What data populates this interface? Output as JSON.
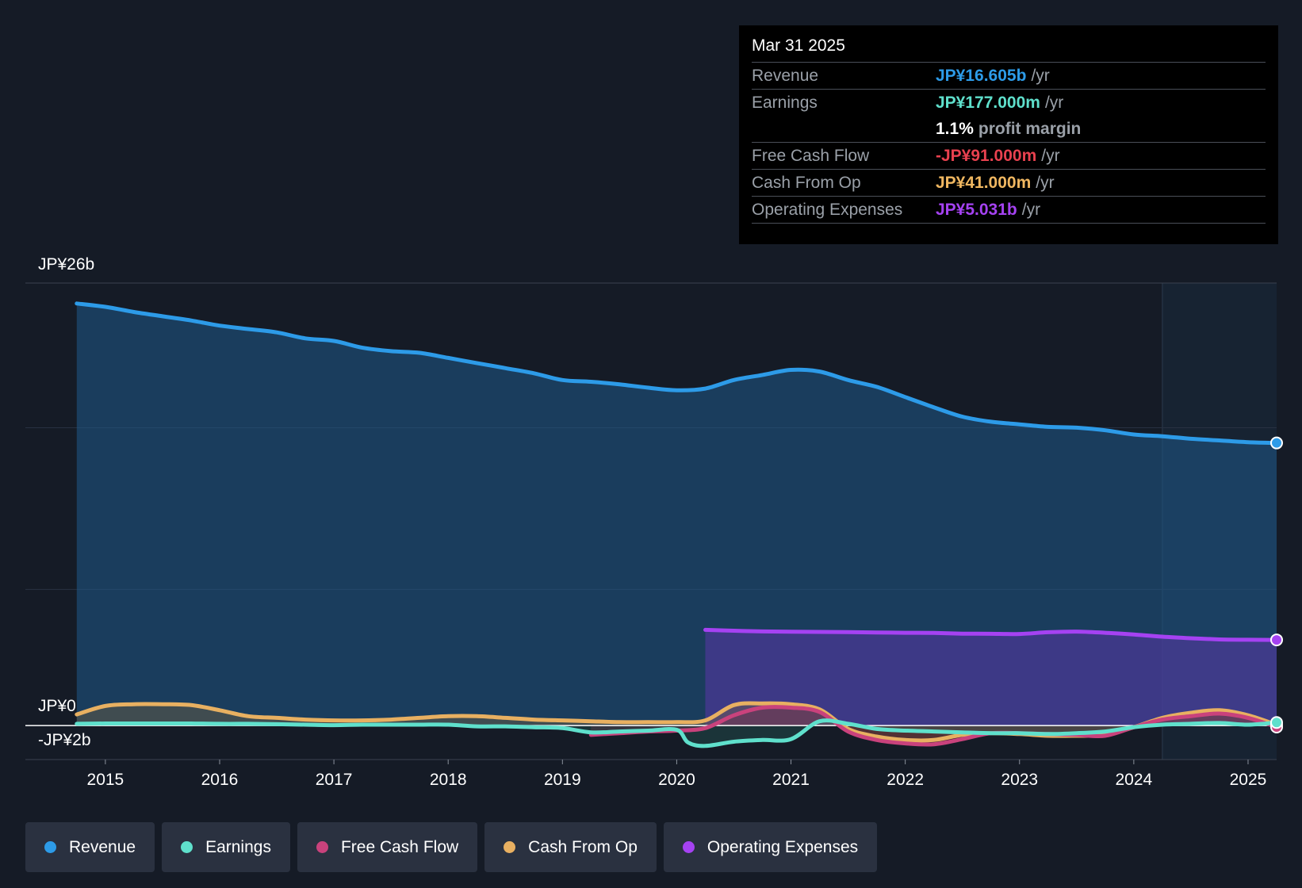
{
  "tooltip": {
    "date": "Mar 31 2025",
    "rows": [
      {
        "name": "Revenue",
        "value": "JP¥16.605b",
        "unit": "/yr",
        "color": "#2d9be8"
      },
      {
        "name": "Earnings",
        "value": "JP¥177.000m",
        "unit": "/yr",
        "color": "#5fe0cc"
      },
      {
        "name": "",
        "value": "1.1%",
        "unit": "profit margin",
        "color": "#ffffff"
      },
      {
        "name": "Free Cash Flow",
        "value": "-JP¥91.000m",
        "unit": "/yr",
        "color": "#e8414f"
      },
      {
        "name": "Cash From Op",
        "value": "JP¥41.000m",
        "unit": "/yr",
        "color": "#f0b761"
      },
      {
        "name": "Operating Expenses",
        "value": "JP¥5.031b",
        "unit": "/yr",
        "color": "#a542f2"
      }
    ]
  },
  "legend": [
    {
      "label": "Revenue",
      "color": "#2d9be8"
    },
    {
      "label": "Earnings",
      "color": "#5fe0cc"
    },
    {
      "label": "Free Cash Flow",
      "color": "#c9427c"
    },
    {
      "label": "Cash From Op",
      "color": "#e8b061"
    },
    {
      "label": "Operating Expenses",
      "color": "#a542f2"
    }
  ],
  "chart_data": {
    "type": "area",
    "title": "",
    "y_top_label": "JP¥26b",
    "y_zero_label": "JP¥0",
    "y_min_label": "-JP¥2b",
    "ylim": [
      -2,
      26
    ],
    "xlim": [
      2014.3,
      2025.25
    ],
    "x_ticks": [
      2015,
      2016,
      2017,
      2018,
      2019,
      2020,
      2021,
      2022,
      2023,
      2024,
      2025
    ],
    "x_tick_labels": [
      "2015",
      "2016",
      "2017",
      "2018",
      "2019",
      "2020",
      "2021",
      "2022",
      "2023",
      "2024",
      "2025"
    ],
    "highlight_start": 2024.25,
    "series": [
      {
        "name": "Revenue",
        "color": "#2d9be8",
        "fill": true,
        "x": [
          2014.75,
          2015.0,
          2015.25,
          2015.5,
          2015.75,
          2016.0,
          2016.25,
          2016.5,
          2016.75,
          2017.0,
          2017.25,
          2017.5,
          2017.75,
          2018.0,
          2018.25,
          2018.5,
          2018.75,
          2019.0,
          2019.25,
          2019.5,
          2019.75,
          2020.0,
          2020.25,
          2020.5,
          2020.75,
          2021.0,
          2021.25,
          2021.5,
          2021.75,
          2022.0,
          2022.25,
          2022.5,
          2022.75,
          2023.0,
          2023.25,
          2023.5,
          2023.75,
          2024.0,
          2024.25,
          2024.5,
          2024.75,
          2025.0,
          2025.25
        ],
        "y": [
          24.8,
          24.6,
          24.3,
          24.05,
          23.8,
          23.5,
          23.3,
          23.1,
          22.75,
          22.6,
          22.2,
          22.0,
          21.9,
          21.6,
          21.3,
          21.0,
          20.7,
          20.3,
          20.2,
          20.05,
          19.85,
          19.7,
          19.8,
          20.3,
          20.6,
          20.9,
          20.8,
          20.3,
          19.9,
          19.3,
          18.7,
          18.15,
          17.85,
          17.7,
          17.55,
          17.5,
          17.35,
          17.1,
          17.0,
          16.85,
          16.75,
          16.65,
          16.605
        ]
      },
      {
        "name": "Operating Expenses",
        "color": "#a542f2",
        "fill": true,
        "x": [
          2020.25,
          2020.5,
          2020.75,
          2021.0,
          2021.25,
          2021.5,
          2021.75,
          2022.0,
          2022.25,
          2022.5,
          2022.75,
          2023.0,
          2023.25,
          2023.5,
          2023.75,
          2024.0,
          2024.25,
          2024.5,
          2024.75,
          2025.0,
          2025.25
        ],
        "y": [
          5.62,
          5.57,
          5.53,
          5.51,
          5.5,
          5.49,
          5.47,
          5.45,
          5.44,
          5.4,
          5.39,
          5.38,
          5.48,
          5.52,
          5.45,
          5.35,
          5.22,
          5.13,
          5.06,
          5.04,
          5.031
        ]
      },
      {
        "name": "Cash From Op",
        "color": "#e8b061",
        "fill": true,
        "x": [
          2014.75,
          2015.0,
          2015.25,
          2015.5,
          2015.75,
          2016.0,
          2016.25,
          2016.5,
          2016.75,
          2017.0,
          2017.25,
          2017.5,
          2017.75,
          2018.0,
          2018.25,
          2018.5,
          2018.75,
          2019.0,
          2019.25,
          2019.5,
          2019.75,
          2020.0,
          2020.25,
          2020.5,
          2020.75,
          2021.0,
          2021.25,
          2021.5,
          2021.75,
          2022.0,
          2022.25,
          2022.5,
          2022.75,
          2023.0,
          2023.25,
          2023.5,
          2023.75,
          2024.0,
          2024.25,
          2024.5,
          2024.75,
          2025.0,
          2025.25
        ],
        "y": [
          0.65,
          1.15,
          1.25,
          1.25,
          1.2,
          0.9,
          0.55,
          0.45,
          0.35,
          0.3,
          0.3,
          0.35,
          0.45,
          0.55,
          0.55,
          0.45,
          0.35,
          0.3,
          0.25,
          0.2,
          0.2,
          0.2,
          0.3,
          1.2,
          1.3,
          1.25,
          0.95,
          -0.2,
          -0.65,
          -0.85,
          -0.85,
          -0.55,
          -0.45,
          -0.5,
          -0.6,
          -0.6,
          -0.55,
          -0.1,
          0.45,
          0.75,
          0.9,
          0.6,
          0.041
        ]
      },
      {
        "name": "Free Cash Flow",
        "color": "#c9427c",
        "fill": true,
        "x": [
          2019.25,
          2019.5,
          2019.75,
          2020.0,
          2020.25,
          2020.5,
          2020.75,
          2021.0,
          2021.25,
          2021.5,
          2021.75,
          2022.0,
          2022.25,
          2022.5,
          2022.75,
          2023.0,
          2023.25,
          2023.5,
          2023.75,
          2024.0,
          2024.25,
          2024.5,
          2024.75,
          2025.0,
          2025.25
        ],
        "y": [
          -0.55,
          -0.45,
          -0.35,
          -0.3,
          -0.15,
          0.6,
          1.05,
          1.05,
          0.8,
          -0.35,
          -0.85,
          -1.05,
          -1.1,
          -0.8,
          -0.45,
          -0.45,
          -0.5,
          -0.55,
          -0.6,
          -0.1,
          0.35,
          0.55,
          0.7,
          0.45,
          -0.091
        ]
      },
      {
        "name": "Earnings",
        "color": "#5fe0cc",
        "fill": true,
        "x": [
          2014.75,
          2015.0,
          2015.25,
          2015.5,
          2015.75,
          2016.0,
          2016.25,
          2016.5,
          2016.75,
          2017.0,
          2017.25,
          2017.5,
          2017.75,
          2018.0,
          2018.25,
          2018.5,
          2018.75,
          2019.0,
          2019.25,
          2019.5,
          2019.75,
          2020.0,
          2020.1,
          2020.25,
          2020.5,
          2020.75,
          2021.0,
          2021.25,
          2021.5,
          2021.75,
          2022.0,
          2022.25,
          2022.5,
          2022.75,
          2023.0,
          2023.25,
          2023.5,
          2023.75,
          2024.0,
          2024.25,
          2024.5,
          2024.75,
          2025.0,
          2025.25
        ],
        "y": [
          0.1,
          0.12,
          0.12,
          0.12,
          0.12,
          0.1,
          0.1,
          0.08,
          0.05,
          0.02,
          0.05,
          0.05,
          0.05,
          0.05,
          -0.05,
          -0.05,
          -0.1,
          -0.15,
          -0.4,
          -0.35,
          -0.3,
          -0.25,
          -1.0,
          -1.2,
          -0.95,
          -0.85,
          -0.8,
          0.25,
          0.1,
          -0.2,
          -0.3,
          -0.35,
          -0.4,
          -0.45,
          -0.45,
          -0.5,
          -0.45,
          -0.35,
          -0.1,
          0.05,
          0.1,
          0.15,
          0.05,
          0.177
        ]
      }
    ]
  }
}
